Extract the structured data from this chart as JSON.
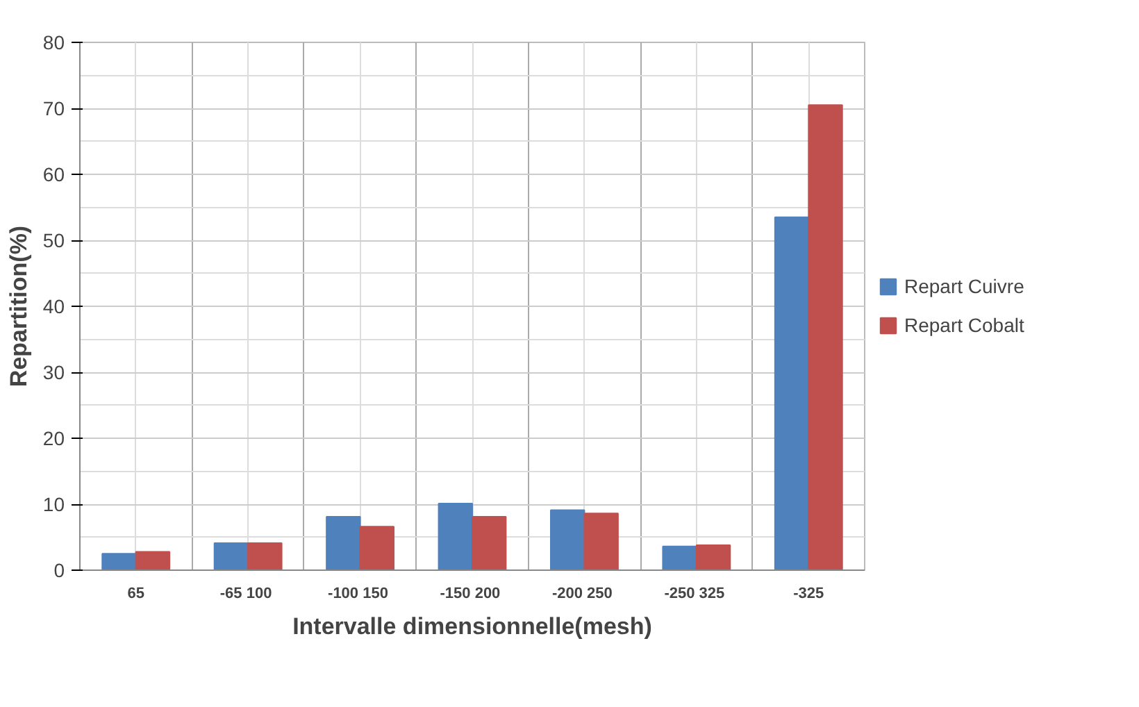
{
  "chart_data": {
    "type": "bar",
    "xlabel": "Intervalle dimensionnelle(mesh)",
    "ylabel": "Repartition(%)",
    "categories": [
      "65",
      "-65  100",
      "-100  150",
      "-150  200",
      "-200  250",
      "-250  325",
      "-325"
    ],
    "series": [
      {
        "name": "Repart Cuivre",
        "color": "#4f81bd",
        "values": [
          2.5,
          4.1,
          8.1,
          10.1,
          9.1,
          3.6,
          53.5
        ]
      },
      {
        "name": "Repart Cobalt",
        "color": "#c0504d",
        "values": [
          2.8,
          4.1,
          6.6,
          8.1,
          8.6,
          3.8,
          70.5
        ]
      }
    ],
    "ylim": [
      0,
      80
    ],
    "yticks": [
      0,
      10,
      20,
      30,
      40,
      50,
      60,
      70,
      80
    ],
    "grid": true,
    "legend": "right"
  }
}
